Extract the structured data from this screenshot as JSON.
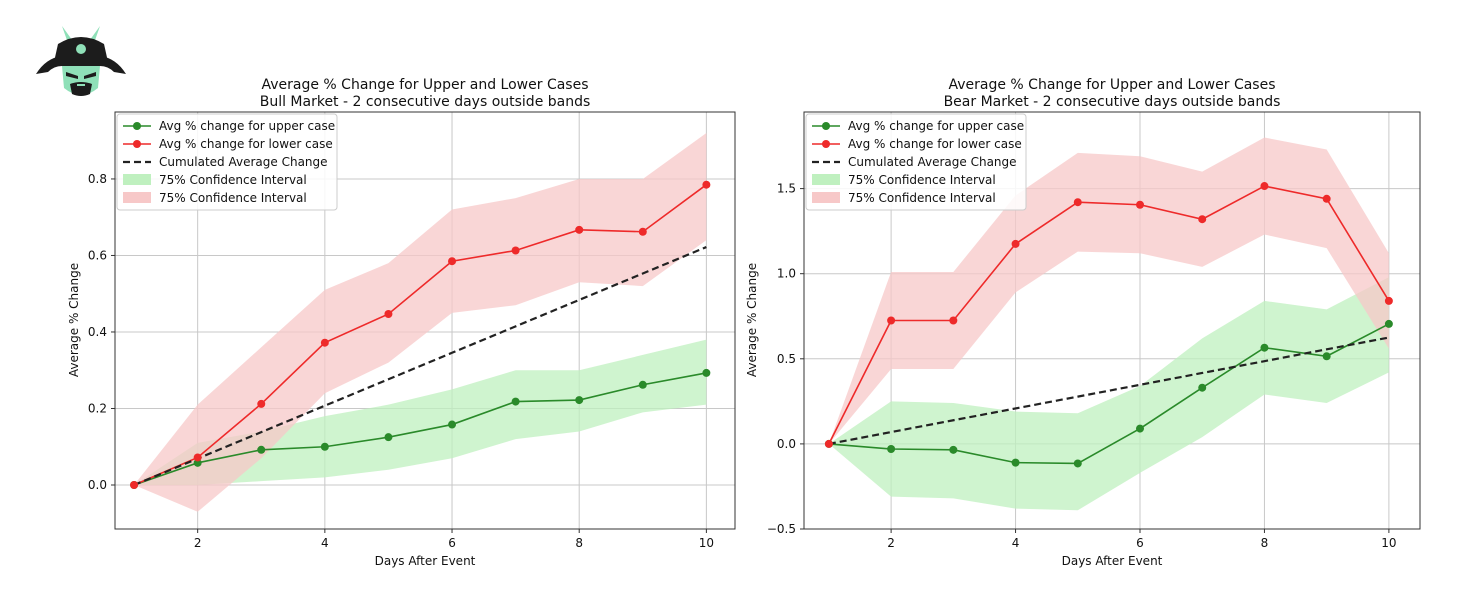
{
  "logo": {
    "icon": "samurai-helmet-logo",
    "colors": {
      "dark": "#1c1c1c",
      "mint": "#8fe0b8"
    }
  },
  "chart_data": [
    {
      "type": "line",
      "title": "Average % Change for Upper and Lower Cases",
      "subtitle": "Bull Market - 2 consecutive days outside bands",
      "xlabel": "Days After Event",
      "ylabel": "Average % Change",
      "xlim": [
        0.7,
        10.45
      ],
      "ylim": [
        -0.115,
        0.975
      ],
      "xticks": [
        2,
        4,
        6,
        8,
        10
      ],
      "xtick_labels": [
        "2",
        "4",
        "6",
        "8",
        "10"
      ],
      "yticks": [
        0.0,
        0.2,
        0.4,
        0.6,
        0.8
      ],
      "ytick_labels": [
        "0.0",
        "0.2",
        "0.4",
        "0.6",
        "0.8"
      ],
      "grid": true,
      "legend_position": "upper-left",
      "x": [
        1,
        2,
        3,
        4,
        5,
        6,
        7,
        8,
        9,
        10
      ],
      "series": [
        {
          "name": "Avg % change for upper case",
          "color": "#2a8a2a",
          "marker": "circle",
          "kind": "line",
          "values": [
            0.0,
            0.058,
            0.092,
            0.1,
            0.125,
            0.158,
            0.218,
            0.222,
            0.262,
            0.293
          ]
        },
        {
          "name": "Avg % change for lower case",
          "color": "#ee2a2a",
          "marker": "circle",
          "kind": "line",
          "values": [
            0.0,
            0.072,
            0.212,
            0.372,
            0.447,
            0.585,
            0.613,
            0.667,
            0.662,
            0.785
          ]
        },
        {
          "name": "Cumulated Average Change",
          "color": "#222222",
          "kind": "dashed",
          "values": [
            0.0,
            0.0691,
            0.1382,
            0.2073,
            0.2764,
            0.3456,
            0.4147,
            0.4838,
            0.5529,
            0.622
          ]
        },
        {
          "name": "75% Confidence Interval",
          "color": "#bff0bf",
          "kind": "band",
          "of": "Avg % change for upper case",
          "lower": [
            0.0,
            0.0,
            0.01,
            0.02,
            0.04,
            0.07,
            0.12,
            0.14,
            0.19,
            0.21
          ],
          "upper": [
            0.0,
            0.11,
            0.14,
            0.18,
            0.21,
            0.25,
            0.3,
            0.3,
            0.34,
            0.38
          ]
        },
        {
          "name": "75% Confidence Interval",
          "color": "#f7c8c8",
          "kind": "band",
          "of": "Avg % change for lower case",
          "lower": [
            0.0,
            -0.07,
            0.07,
            0.24,
            0.32,
            0.45,
            0.47,
            0.53,
            0.52,
            0.64
          ],
          "upper": [
            0.0,
            0.21,
            0.36,
            0.51,
            0.58,
            0.72,
            0.75,
            0.8,
            0.8,
            0.92
          ]
        }
      ]
    },
    {
      "type": "line",
      "title": "Average % Change for Upper and Lower Cases",
      "subtitle": "Bear Market - 2 consecutive days outside bands",
      "xlabel": "Days After Event",
      "ylabel": "Average % Change",
      "xlim": [
        0.6,
        10.5
      ],
      "ylim": [
        -0.5,
        1.95
      ],
      "xticks": [
        2,
        4,
        6,
        8,
        10
      ],
      "xtick_labels": [
        "2",
        "4",
        "6",
        "8",
        "10"
      ],
      "yticks": [
        -0.5,
        0.0,
        0.5,
        1.0,
        1.5
      ],
      "ytick_labels": [
        "−0.5",
        "0.0",
        "0.5",
        "1.0",
        "1.5"
      ],
      "grid": true,
      "legend_position": "upper-left",
      "x": [
        1,
        2,
        3,
        4,
        5,
        6,
        7,
        8,
        9,
        10
      ],
      "series": [
        {
          "name": "Avg % change for upper case",
          "color": "#2a8a2a",
          "marker": "circle",
          "kind": "line",
          "values": [
            0.0,
            -0.03,
            -0.035,
            -0.11,
            -0.115,
            0.09,
            0.33,
            0.565,
            0.515,
            0.705
          ]
        },
        {
          "name": "Avg % change for lower case",
          "color": "#ee2a2a",
          "marker": "circle",
          "kind": "line",
          "values": [
            0.0,
            0.725,
            0.725,
            1.175,
            1.42,
            1.405,
            1.32,
            1.515,
            1.44,
            0.84
          ]
        },
        {
          "name": "Cumulated Average Change",
          "color": "#222222",
          "kind": "dashed",
          "values": [
            0.0,
            0.0694,
            0.1389,
            0.2083,
            0.2778,
            0.3472,
            0.4167,
            0.4861,
            0.5556,
            0.625
          ]
        },
        {
          "name": "75% Confidence Interval",
          "color": "#bff0bf",
          "kind": "band",
          "of": "Avg % change for upper case",
          "lower": [
            0.0,
            -0.31,
            -0.32,
            -0.38,
            -0.39,
            -0.17,
            0.04,
            0.29,
            0.24,
            0.42
          ],
          "upper": [
            0.0,
            0.25,
            0.24,
            0.19,
            0.18,
            0.34,
            0.62,
            0.84,
            0.79,
            0.98
          ]
        },
        {
          "name": "75% Confidence Interval",
          "color": "#f7c8c8",
          "kind": "band",
          "of": "Avg % change for lower case",
          "lower": [
            0.0,
            0.44,
            0.44,
            0.89,
            1.13,
            1.12,
            1.04,
            1.23,
            1.15,
            0.56
          ],
          "upper": [
            0.0,
            1.01,
            1.01,
            1.46,
            1.71,
            1.69,
            1.6,
            1.8,
            1.73,
            1.12
          ]
        }
      ]
    }
  ]
}
